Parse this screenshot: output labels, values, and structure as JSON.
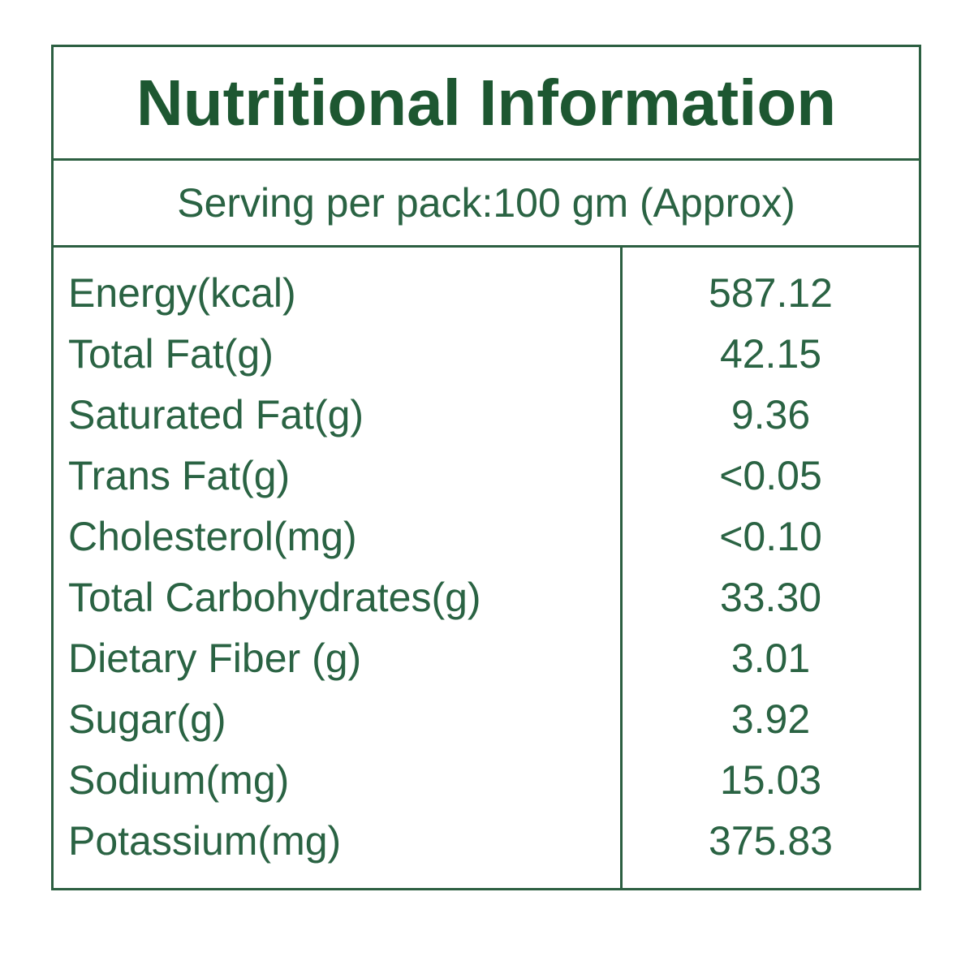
{
  "title": "Nutritional Information",
  "serving_line": "Serving per pack:100 gm (Approx)",
  "table": {
    "rows": [
      {
        "label": "Energy(kcal)",
        "value": "587.12"
      },
      {
        "label": "Total Fat(g)",
        "value": "42.15"
      },
      {
        "label": "Saturated Fat(g)",
        "value": "9.36"
      },
      {
        "label": "Trans Fat(g)",
        "value": "<0.05"
      },
      {
        "label": "Cholesterol(mg)",
        "value": "<0.10"
      },
      {
        "label": "Total Carbohydrates(g)",
        "value": "33.30"
      },
      {
        "label": "Dietary Fiber (g)",
        "value": "3.01"
      },
      {
        "label": "Sugar(g)",
        "value": "3.92"
      },
      {
        "label": "Sodium(mg)",
        "value": "15.03"
      },
      {
        "label": "Potassium(mg)",
        "value": "375.83"
      }
    ]
  },
  "colors": {
    "title_green": "#1d5731",
    "text_green": "#2a6343",
    "border_green": "#2c5f41",
    "background": "#ffffff"
  }
}
